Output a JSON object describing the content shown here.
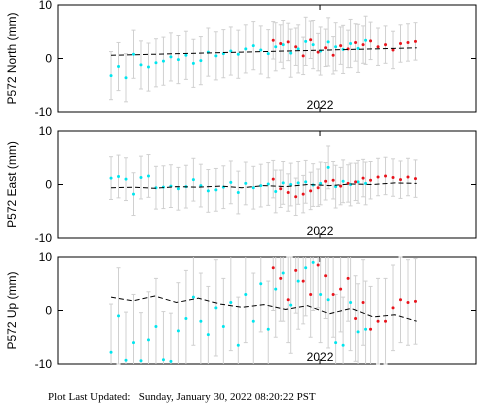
{
  "chart_data": [
    {
      "type": "scatter",
      "ylabel": "P572 North (mm)",
      "xlim": [
        2021.58,
        2022.25
      ],
      "ylim": [
        -10,
        10
      ],
      "yticks": [
        -10,
        0,
        10
      ],
      "xticks": [
        {
          "value": 2022.0,
          "label": "2022"
        }
      ],
      "series": [
        {
          "color": "#00e5ee",
          "x": [
            2021.665,
            2021.677,
            2021.689,
            2021.701,
            2021.713,
            2021.725,
            2021.737,
            2021.749,
            2021.761,
            2021.773,
            2021.785,
            2021.797,
            2021.809,
            2021.821,
            2021.833,
            2021.845,
            2021.857,
            2021.869,
            2021.881,
            2021.893,
            2021.905,
            2021.917,
            2021.929,
            2021.941,
            2021.953,
            2021.965,
            2021.977,
            2021.989,
            2022.001,
            2022.013,
            2022.025,
            2022.037,
            2022.049,
            2022.061,
            2022.073
          ],
          "values": [
            -3.2,
            -1.5,
            -3.6,
            0.8,
            -1.2,
            -1.6,
            -0.8,
            -0.5,
            0.3,
            -0.2,
            0.6,
            -0.9,
            -0.4,
            1.2,
            0.5,
            0.9,
            1.4,
            0.8,
            1.8,
            2.4,
            1.6,
            0.9,
            2.2,
            2.6,
            1.0,
            1.8,
            3.2,
            2.6,
            1.4,
            3.1,
            2.2,
            1.7,
            2.8,
            1.9,
            3.4
          ],
          "errors": [
            4.5,
            4.5,
            4.5,
            4.5,
            4.5,
            4.5,
            4.5,
            4.5,
            4.5,
            4.5,
            4.5,
            4.5,
            4.5,
            4.5,
            4.5,
            4.5,
            4.5,
            4.5,
            4.5,
            4.5,
            4.5,
            4.5,
            4.5,
            4.5,
            4.5,
            4.5,
            4.5,
            4.5,
            4.5,
            4.5,
            4.5,
            4.5,
            4.5,
            4.5,
            4.5
          ]
        },
        {
          "color": "#e8141c",
          "x": [
            2021.925,
            2021.937,
            2021.949,
            2021.961,
            2021.973,
            2021.985,
            2021.997,
            2022.009,
            2022.021,
            2022.033,
            2022.045,
            2022.057,
            2022.069,
            2022.081,
            2022.093,
            2022.105,
            2022.117,
            2022.129,
            2022.141,
            2022.153
          ],
          "values": [
            3.4,
            2.8,
            3.1,
            2.2,
            0.5,
            3.5,
            1.2,
            2.0,
            0.6,
            2.4,
            1.8,
            3.0,
            2.6,
            3.3,
            2.2,
            2.6,
            1.6,
            2.8,
            3.0,
            3.2
          ],
          "errors": [
            3.5,
            3.5,
            3.5,
            3.5,
            3.5,
            3.5,
            3.5,
            3.5,
            3.5,
            3.5,
            3.5,
            3.5,
            3.5,
            3.5,
            3.5,
            3.5,
            3.5,
            3.5,
            3.5,
            3.5
          ]
        }
      ],
      "model": {
        "color": "#000000",
        "x": [
          2021.665,
          2021.7,
          2021.735,
          2021.77,
          2021.805,
          2021.84,
          2021.875,
          2021.91,
          2021.945,
          2021.98,
          2022.015,
          2022.05,
          2022.085,
          2022.12,
          2022.155
        ],
        "values": [
          0.6,
          0.7,
          0.8,
          0.9,
          1.0,
          1.1,
          1.2,
          1.3,
          1.4,
          1.5,
          1.6,
          1.7,
          1.8,
          1.9,
          2.0
        ]
      }
    },
    {
      "type": "scatter",
      "ylabel": "P572 East (mm)",
      "xlim": [
        2021.58,
        2022.25
      ],
      "ylim": [
        -10,
        10
      ],
      "yticks": [
        -10,
        0,
        10
      ],
      "xticks": [
        {
          "value": 2022.0,
          "label": "2022"
        }
      ],
      "series": [
        {
          "color": "#00e5ee",
          "x": [
            2021.665,
            2021.677,
            2021.689,
            2021.701,
            2021.713,
            2021.725,
            2021.737,
            2021.749,
            2021.761,
            2021.773,
            2021.785,
            2021.797,
            2021.809,
            2021.821,
            2021.833,
            2021.845,
            2021.857,
            2021.869,
            2021.881,
            2021.893,
            2021.905,
            2021.917,
            2021.929,
            2021.941,
            2021.953,
            2021.965,
            2021.977,
            2021.989,
            2022.001,
            2022.013,
            2022.025,
            2022.037,
            2022.049,
            2022.061,
            2022.073
          ],
          "values": [
            1.2,
            1.5,
            1.0,
            -1.8,
            1.3,
            1.6,
            -0.6,
            -0.5,
            -0.3,
            -0.8,
            -0.4,
            0.9,
            -0.2,
            -1.2,
            -1.0,
            -0.5,
            0.4,
            -1.5,
            0.2,
            -0.6,
            -0.2,
            0.1,
            -1.3,
            0.3,
            0.0,
            0.3,
            0.5,
            -0.1,
            0.2,
            3.2,
            -0.4,
            0.6,
            0.0,
            0.5,
            0.2
          ],
          "errors": [
            4,
            4,
            4,
            4,
            4,
            4,
            4,
            4,
            4,
            4,
            4,
            4,
            4,
            4,
            4,
            4,
            4,
            4,
            4,
            4,
            4,
            4,
            4,
            4,
            4,
            4,
            4,
            4,
            4,
            4,
            4,
            4,
            4,
            4,
            4
          ]
        },
        {
          "color": "#e8141c",
          "x": [
            2021.925,
            2021.937,
            2021.949,
            2021.961,
            2021.973,
            2021.985,
            2021.997,
            2022.009,
            2022.021,
            2022.033,
            2022.045,
            2022.057,
            2022.069,
            2022.081,
            2022.093,
            2022.105,
            2022.117,
            2022.129,
            2022.141,
            2022.153
          ],
          "values": [
            1.0,
            -0.8,
            -1.5,
            -2.3,
            -1.8,
            -1.2,
            -0.6,
            0.6,
            0.8,
            -0.3,
            0.2,
            0.5,
            1.2,
            0.8,
            1.4,
            1.6,
            1.3,
            0.9,
            1.4,
            1.1
          ],
          "errors": [
            3.5,
            3.5,
            3.5,
            3.5,
            3.5,
            3.5,
            3.5,
            3.5,
            3.5,
            3.5,
            3.5,
            3.5,
            3.5,
            3.5,
            3.5,
            3.5,
            3.5,
            3.5,
            3.5,
            3.5
          ]
        }
      ],
      "model": {
        "color": "#000000",
        "x": [
          2021.665,
          2021.7,
          2021.735,
          2021.77,
          2021.805,
          2021.84,
          2021.875,
          2021.91,
          2021.945,
          2021.98,
          2022.015,
          2022.05,
          2022.085,
          2022.12,
          2022.155
        ],
        "values": [
          -0.6,
          -0.5,
          -0.7,
          -0.4,
          -0.5,
          -0.3,
          -0.6,
          -0.2,
          -0.4,
          0.0,
          -0.2,
          0.1,
          0.0,
          0.3,
          0.2
        ]
      }
    },
    {
      "type": "scatter",
      "ylabel": "P572 Up (mm)",
      "xlim": [
        2021.58,
        2022.25
      ],
      "ylim": [
        -10,
        10
      ],
      "yticks": [
        -10,
        0,
        10
      ],
      "xticks": [
        {
          "value": 2022.0,
          "label": "2022"
        }
      ],
      "series": [
        {
          "color": "#00e5ee",
          "x": [
            2021.665,
            2021.677,
            2021.689,
            2021.701,
            2021.713,
            2021.725,
            2021.737,
            2021.749,
            2021.761,
            2021.773,
            2021.785,
            2021.797,
            2021.809,
            2021.821,
            2021.833,
            2021.845,
            2021.857,
            2021.869,
            2021.881,
            2021.893,
            2021.905,
            2021.917,
            2021.929,
            2021.941,
            2021.953,
            2021.965,
            2021.977,
            2021.989,
            2022.001,
            2022.013,
            2022.025,
            2022.037,
            2022.049,
            2022.061,
            2022.073
          ],
          "values": [
            -7.8,
            -1.0,
            -9.3,
            -6.0,
            -9.4,
            -5.5,
            -3.0,
            -9.2,
            -9.5,
            -3.8,
            -1.5,
            2.5,
            -2.0,
            -4.5,
            0.5,
            -3.0,
            1.5,
            -6.5,
            3.0,
            -2.0,
            5.0,
            -3.5,
            4.0,
            7.0,
            1.0,
            5.5,
            8.0,
            9.0,
            3.0,
            2.0,
            -6.0,
            -6.5,
            1.5,
            -4.0,
            -3.5
          ],
          "errors": [
            9,
            9,
            9,
            9,
            9,
            9,
            9,
            9,
            9,
            9,
            9,
            9,
            9,
            9,
            9,
            9,
            9,
            9,
            9,
            9,
            9,
            9,
            9,
            9,
            9,
            9,
            9,
            9,
            9,
            9,
            9,
            9,
            9,
            9,
            9
          ]
        },
        {
          "color": "#e8141c",
          "x": [
            2021.925,
            2021.937,
            2021.949,
            2021.961,
            2021.973,
            2021.985,
            2021.997,
            2022.009,
            2022.021,
            2022.033,
            2022.045,
            2022.057,
            2022.069,
            2022.081,
            2022.093,
            2022.105,
            2022.117,
            2022.129,
            2022.141,
            2022.153
          ],
          "values": [
            8.0,
            6.0,
            2.0,
            7.5,
            5.5,
            3.0,
            8.5,
            6.5,
            3.0,
            4.0,
            6.0,
            -1.5,
            1.5,
            -3.5,
            -2.0,
            -2.0,
            0.5,
            2.0,
            1.5,
            1.7
          ],
          "errors": [
            8,
            8,
            8,
            8,
            8,
            8,
            8,
            8,
            8,
            8,
            8,
            8,
            8,
            8,
            8,
            8,
            8,
            8,
            8,
            8
          ]
        }
      ],
      "model": {
        "color": "#000000",
        "x": [
          2021.665,
          2021.7,
          2021.735,
          2021.77,
          2021.805,
          2021.84,
          2021.875,
          2021.91,
          2021.945,
          2021.98,
          2022.015,
          2022.05,
          2022.085,
          2022.12,
          2022.155
        ],
        "values": [
          2.5,
          1.8,
          2.7,
          1.5,
          2.3,
          1.2,
          0.6,
          1.1,
          0.2,
          0.9,
          -0.6,
          0.4,
          -1.2,
          -0.8,
          -2.0
        ]
      }
    }
  ],
  "footer": "Plot Last Updated:   Sunday, January 30, 2022 08:20:22 PST"
}
